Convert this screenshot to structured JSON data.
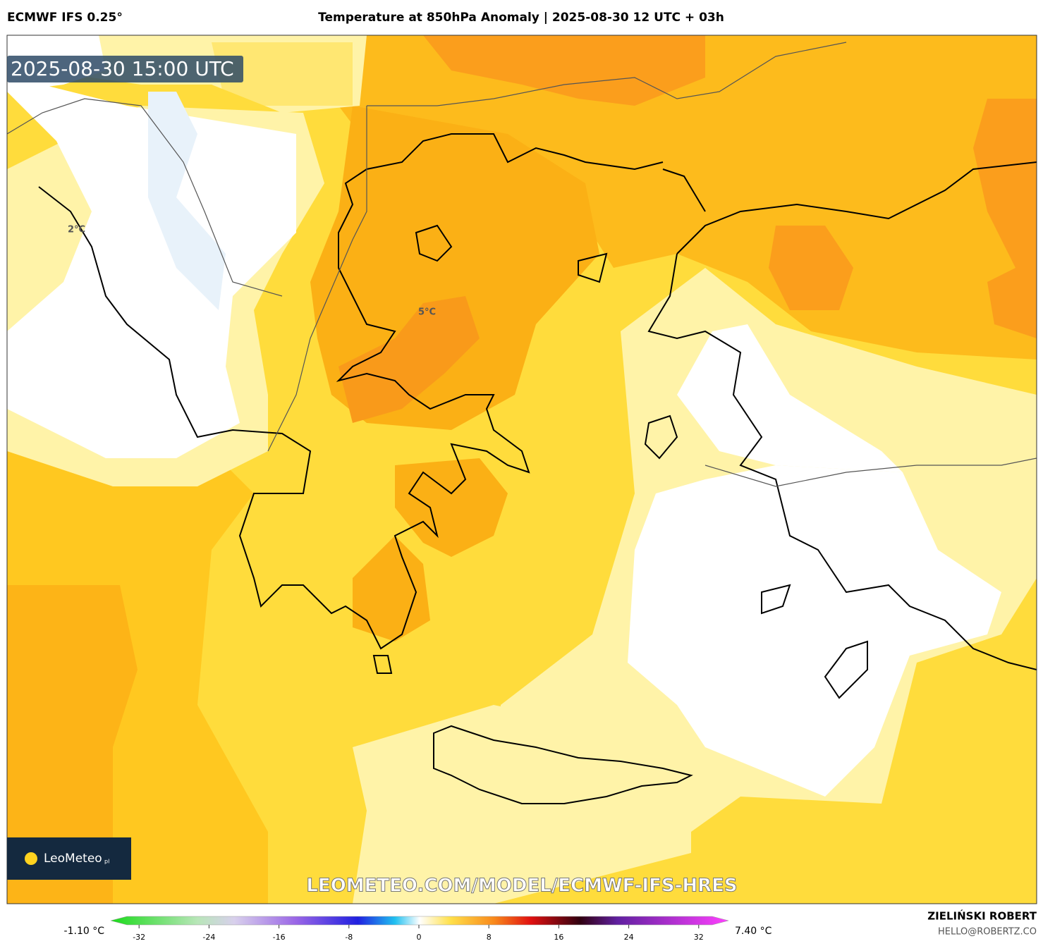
{
  "header": {
    "model": "ECMWF IFS 0.25°",
    "title": "Temperature at 850hPa Anomaly | 2025-08-30 12 UTC + 03h"
  },
  "map": {
    "timestamp": "2025-08-30 15:00 UTC",
    "contour_labels": [
      "2°C",
      "5°C"
    ],
    "logo": "LeoMeteo",
    "logo_suffix": "pl",
    "watermark": "LEOMETEO.COM/MODEL/ECMWF-IFS-HRES"
  },
  "colorbar": {
    "min_label": "-1.10 °C",
    "max_label": "7.40 °C",
    "lim": [
      -35,
      35
    ],
    "ticks": [
      -32,
      -24,
      -16,
      -8,
      0,
      8,
      16,
      24,
      32
    ]
  },
  "footer": {
    "author": "ZIELIŃSKI ROBERT",
    "email": "HELLO@ROBERTZ.CO"
  }
}
